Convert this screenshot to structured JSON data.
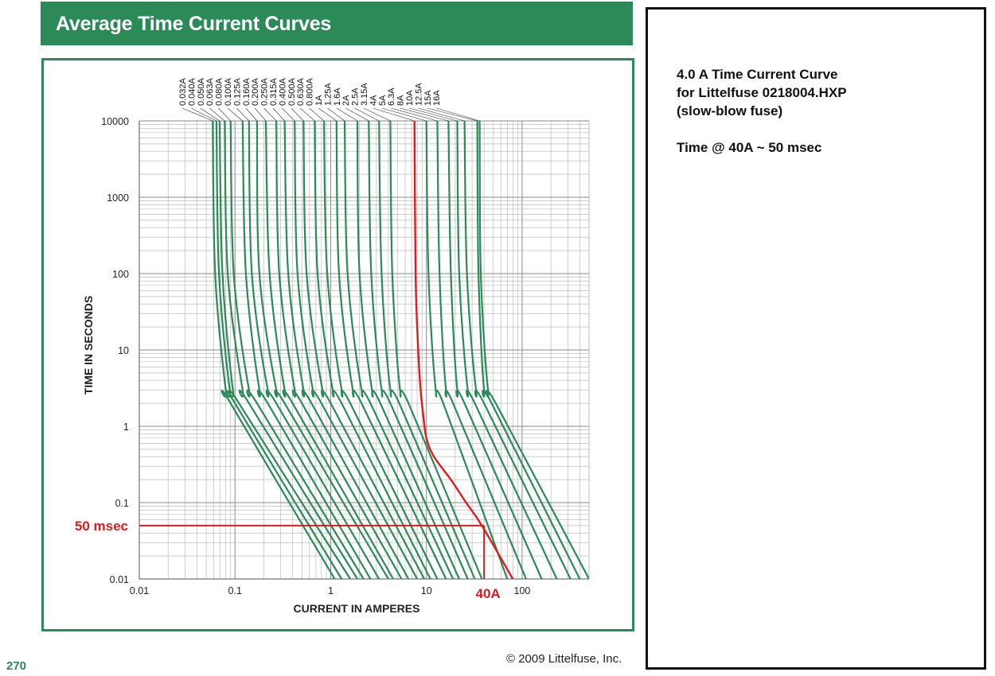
{
  "header": {
    "title": "Average Time Current Curves"
  },
  "note": {
    "line1": "4.0 A Time Current Curve",
    "line2": "for Littelfuse 0218004.HXP",
    "line3": "(slow-blow fuse)",
    "line4": "Time @ 40A ~ 50 msec"
  },
  "footer": {
    "page_number": "270",
    "copyright": "© 2009 Littelfuse, Inc."
  },
  "colors": {
    "curve": "#2b8a57",
    "highlight": "#e01b1b",
    "brand_green": "#2b8a57",
    "grid": "#b0b0b0"
  },
  "chart_data": {
    "type": "line",
    "title": "",
    "xlabel": "CURRENT IN AMPERES",
    "ylabel": "TIME IN SECONDS",
    "x_scale": "log",
    "y_scale": "log",
    "xlim": [
      0.01,
      500
    ],
    "ylim": [
      0.01,
      10000
    ],
    "x_ticks": [
      "0.01",
      "0.1",
      "1",
      "10",
      "100"
    ],
    "y_ticks": [
      "10000",
      "1000",
      "100",
      "10",
      "1",
      "0.1",
      "0.01"
    ],
    "grid": true,
    "series_labels": [
      "0.032A",
      "0.040A",
      "0.050A",
      "0.063A",
      "0.080A",
      "0.100A",
      "0.125A",
      "0.160A",
      "0.200A",
      "0.250A",
      "0.315A",
      "0.400A",
      "0.500A",
      "0.630A",
      "0.800A",
      "1A",
      "1.25A",
      "1.6A",
      "2A",
      "2.5A",
      "3.15A",
      "4A",
      "5A",
      "6.3A",
      "8A",
      "10A",
      "12.5A",
      "15A",
      "16A"
    ],
    "series": [
      {
        "name": "0.032A",
        "highlighted": false,
        "points": [
          [
            0.0585,
            10000
          ],
          [
            0.062,
            100
          ],
          [
            0.08,
            3
          ],
          [
            0.09,
            2
          ],
          [
            1.1,
            0.01
          ]
        ]
      },
      {
        "name": "0.040A",
        "highlighted": false,
        "points": [
          [
            0.064,
            10000
          ],
          [
            0.068,
            100
          ],
          [
            0.088,
            3
          ],
          [
            0.1,
            2
          ],
          [
            1.3,
            0.01
          ]
        ]
      },
      {
        "name": "0.050A",
        "highlighted": false,
        "points": [
          [
            0.069,
            10000
          ],
          [
            0.074,
            100
          ],
          [
            0.095,
            3
          ],
          [
            0.11,
            2
          ],
          [
            1.6,
            0.01
          ]
        ]
      },
      {
        "name": "0.063A",
        "highlighted": false,
        "points": [
          [
            0.078,
            10000
          ],
          [
            0.084,
            100
          ],
          [
            0.12,
            3
          ],
          [
            0.14,
            2
          ],
          [
            1.9,
            0.01
          ]
        ]
      },
      {
        "name": "0.080A",
        "highlighted": false,
        "points": [
          [
            0.09,
            10000
          ],
          [
            0.097,
            100
          ],
          [
            0.14,
            3
          ],
          [
            0.17,
            2
          ],
          [
            2.2,
            0.01
          ]
        ]
      },
      {
        "name": "0.100A",
        "highlighted": false,
        "points": [
          [
            0.12,
            10000
          ],
          [
            0.13,
            100
          ],
          [
            0.18,
            3
          ],
          [
            0.22,
            2
          ],
          [
            2.6,
            0.01
          ]
        ]
      },
      {
        "name": "0.125A",
        "highlighted": false,
        "points": [
          [
            0.14,
            10000
          ],
          [
            0.15,
            100
          ],
          [
            0.22,
            3
          ],
          [
            0.27,
            2
          ],
          [
            3.2,
            0.01
          ]
        ]
      },
      {
        "name": "0.160A",
        "highlighted": false,
        "points": [
          [
            0.17,
            10000
          ],
          [
            0.18,
            100
          ],
          [
            0.27,
            3
          ],
          [
            0.33,
            2
          ],
          [
            4,
            0.01
          ]
        ]
      },
      {
        "name": "0.200A",
        "highlighted": false,
        "points": [
          [
            0.21,
            10000
          ],
          [
            0.23,
            100
          ],
          [
            0.33,
            3
          ],
          [
            0.4,
            2
          ],
          [
            4.5,
            0.01
          ]
        ]
      },
      {
        "name": "0.250A",
        "highlighted": false,
        "points": [
          [
            0.27,
            10000
          ],
          [
            0.29,
            100
          ],
          [
            0.42,
            3
          ],
          [
            0.5,
            2
          ],
          [
            5.5,
            0.01
          ]
        ]
      },
      {
        "name": "0.315A",
        "highlighted": false,
        "points": [
          [
            0.33,
            10000
          ],
          [
            0.36,
            100
          ],
          [
            0.52,
            3
          ],
          [
            0.63,
            2
          ],
          [
            6.5,
            0.01
          ]
        ]
      },
      {
        "name": "0.400A",
        "highlighted": false,
        "points": [
          [
            0.42,
            10000
          ],
          [
            0.45,
            100
          ],
          [
            0.65,
            3
          ],
          [
            0.8,
            2
          ],
          [
            8,
            0.01
          ]
        ]
      },
      {
        "name": "0.500A",
        "highlighted": false,
        "points": [
          [
            0.52,
            10000
          ],
          [
            0.56,
            100
          ],
          [
            0.82,
            3
          ],
          [
            1,
            2
          ],
          [
            9.5,
            0.01
          ]
        ]
      },
      {
        "name": "0.630A",
        "highlighted": false,
        "points": [
          [
            0.68,
            10000
          ],
          [
            0.73,
            100
          ],
          [
            1.05,
            3
          ],
          [
            1.3,
            2
          ],
          [
            11,
            0.01
          ]
        ]
      },
      {
        "name": "0.800A",
        "highlighted": false,
        "points": [
          [
            0.85,
            10000
          ],
          [
            0.92,
            100
          ],
          [
            1.3,
            3
          ],
          [
            1.6,
            2
          ],
          [
            13,
            0.01
          ]
        ]
      },
      {
        "name": "1A",
        "highlighted": false,
        "points": [
          [
            1.15,
            10000
          ],
          [
            1.22,
            100
          ],
          [
            1.7,
            3
          ],
          [
            2.1,
            2
          ],
          [
            16,
            0.01
          ]
        ]
      },
      {
        "name": "1.25A",
        "highlighted": false,
        "points": [
          [
            1.4,
            10000
          ],
          [
            1.5,
            100
          ],
          [
            2.1,
            3
          ],
          [
            2.6,
            2
          ],
          [
            19,
            0.01
          ]
        ]
      },
      {
        "name": "1.6A",
        "highlighted": false,
        "points": [
          [
            1.9,
            10000
          ],
          [
            2,
            100
          ],
          [
            2.7,
            3
          ],
          [
            3.3,
            2
          ],
          [
            22,
            0.01
          ]
        ]
      },
      {
        "name": "2A",
        "highlighted": false,
        "points": [
          [
            2.5,
            10000
          ],
          [
            2.65,
            100
          ],
          [
            3.4,
            3
          ],
          [
            4.2,
            2
          ],
          [
            27,
            0.01
          ]
        ]
      },
      {
        "name": "2.5A",
        "highlighted": false,
        "points": [
          [
            3.2,
            10000
          ],
          [
            3.4,
            100
          ],
          [
            4.2,
            3
          ],
          [
            5.2,
            2
          ],
          [
            32,
            0.01
          ]
        ]
      },
      {
        "name": "3.15A",
        "highlighted": false,
        "points": [
          [
            4.2,
            10000
          ],
          [
            4.4,
            100
          ],
          [
            5.3,
            3
          ],
          [
            6.5,
            2
          ],
          [
            38,
            0.01
          ]
        ]
      },
      {
        "name": "4A",
        "highlighted": true,
        "points": [
          [
            7.5,
            10000
          ],
          [
            7.7,
            100
          ],
          [
            8.2,
            10
          ],
          [
            8.7,
            3
          ],
          [
            9.2,
            1.5
          ],
          [
            10,
            0.7
          ],
          [
            12,
            0.4
          ],
          [
            18,
            0.2
          ],
          [
            26,
            0.1
          ],
          [
            38,
            0.05
          ],
          [
            80,
            0.01
          ]
        ]
      },
      {
        "name": "5A",
        "highlighted": false,
        "points": [
          [
            10,
            10000
          ],
          [
            10.5,
            100
          ],
          [
            12.5,
            3
          ],
          [
            15,
            2
          ],
          [
            70,
            0.01
          ]
        ]
      },
      {
        "name": "6.3A",
        "highlighted": false,
        "points": [
          [
            13,
            10000
          ],
          [
            13.7,
            100
          ],
          [
            16,
            3
          ],
          [
            19,
            2
          ],
          [
            110,
            0.01
          ]
        ]
      },
      {
        "name": "8A",
        "highlighted": false,
        "points": [
          [
            17,
            10000
          ],
          [
            18,
            100
          ],
          [
            21,
            3
          ],
          [
            25,
            2
          ],
          [
            160,
            0.01
          ]
        ]
      },
      {
        "name": "10A",
        "highlighted": false,
        "points": [
          [
            21,
            10000
          ],
          [
            22,
            100
          ],
          [
            27,
            3
          ],
          [
            32,
            2
          ],
          [
            230,
            0.01
          ]
        ]
      },
      {
        "name": "12.5A",
        "highlighted": false,
        "points": [
          [
            25,
            10000
          ],
          [
            26.5,
            100
          ],
          [
            33,
            3
          ],
          [
            40,
            2
          ],
          [
            320,
            0.01
          ]
        ]
      },
      {
        "name": "15A",
        "highlighted": false,
        "points": [
          [
            34,
            10000
          ],
          [
            35,
            100
          ],
          [
            40,
            3
          ],
          [
            48,
            2
          ],
          [
            400,
            0.01
          ]
        ]
      },
      {
        "name": "16A",
        "highlighted": false,
        "points": [
          [
            36,
            10000
          ],
          [
            37,
            100
          ],
          [
            44,
            3
          ],
          [
            53,
            2
          ],
          [
            500,
            0.01
          ]
        ]
      }
    ],
    "annotations": [
      {
        "text": "50 msec",
        "axis": "y",
        "value": 0.05
      },
      {
        "text": "40A",
        "axis": "x",
        "value": 40
      }
    ]
  }
}
